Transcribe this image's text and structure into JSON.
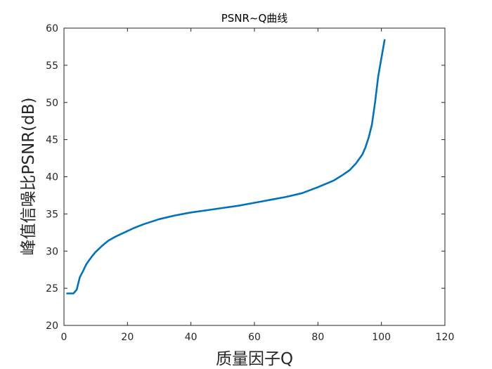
{
  "chart_data": {
    "type": "line",
    "title": "PSNR~Q曲线",
    "xlabel": "质量因子Q",
    "ylabel": "峰值信噪比PSNR(dB)",
    "xlim": [
      0,
      120
    ],
    "ylim": [
      20,
      60
    ],
    "xticks": [
      "0",
      "20",
      "40",
      "60",
      "80",
      "100",
      "120"
    ],
    "yticks": [
      "20",
      "25",
      "30",
      "35",
      "40",
      "45",
      "50",
      "55",
      "60"
    ],
    "grid": false,
    "legend": "none",
    "line_color": "#0072BD",
    "series": [
      {
        "x": [
          1,
          2,
          3,
          4,
          5,
          6,
          7,
          8,
          9,
          10,
          12,
          14,
          16,
          18,
          20,
          22,
          25,
          30,
          35,
          40,
          45,
          50,
          55,
          60,
          65,
          70,
          75,
          80,
          85,
          88,
          90,
          92,
          94,
          95,
          96,
          97,
          98,
          99,
          100,
          101
        ],
        "y": [
          24.3,
          24.3,
          24.3,
          24.8,
          26.5,
          27.3,
          28.2,
          28.8,
          29.4,
          29.9,
          30.7,
          31.4,
          31.9,
          32.3,
          32.7,
          33.1,
          33.6,
          34.3,
          34.8,
          35.2,
          35.5,
          35.8,
          36.1,
          36.5,
          36.9,
          37.3,
          37.8,
          38.6,
          39.5,
          40.3,
          40.9,
          41.8,
          43.0,
          44.0,
          45.3,
          47.0,
          50.0,
          53.5,
          56.0,
          58.4
        ]
      }
    ]
  }
}
